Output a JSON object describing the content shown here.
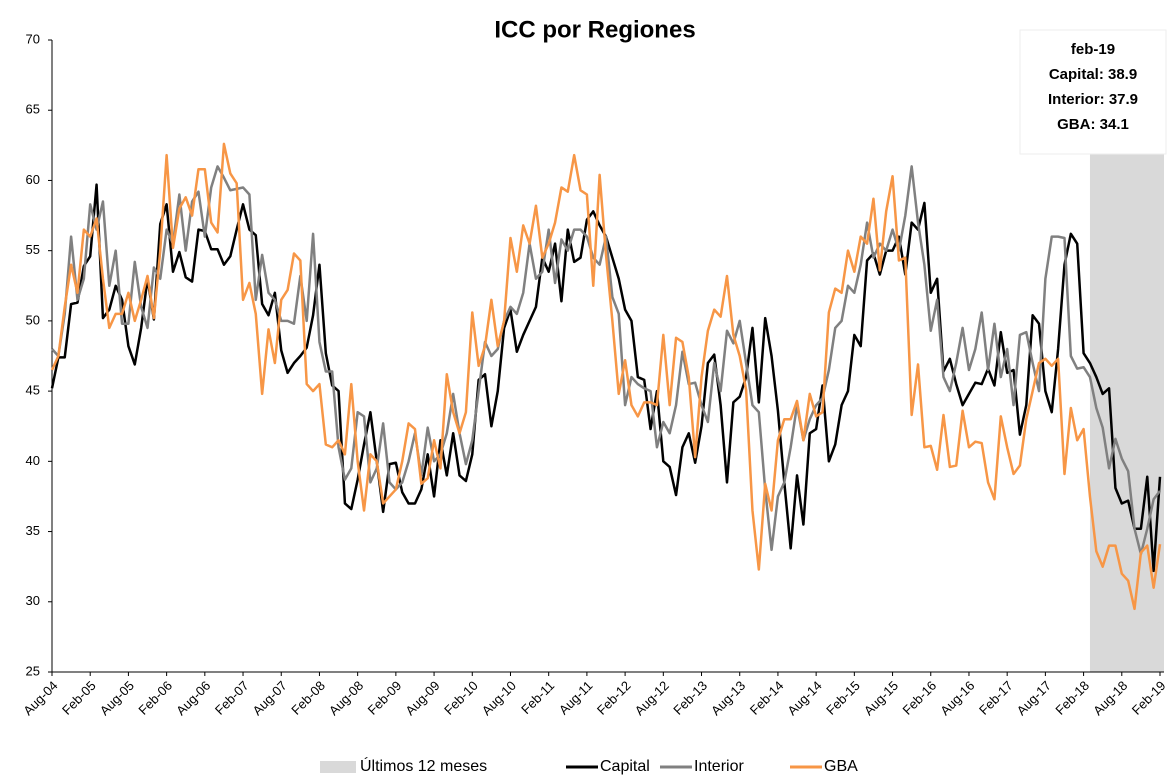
{
  "chart_data": {
    "type": "line",
    "title": "ICC por Regiones",
    "categories": [
      "Aug-04",
      null,
      null,
      null,
      null,
      null,
      "Feb-05",
      null,
      null,
      null,
      null,
      null,
      "Aug-05",
      null,
      null,
      null,
      null,
      null,
      "Feb-06",
      null,
      null,
      null,
      null,
      null,
      "Aug-06",
      null,
      null,
      null,
      null,
      null,
      "Feb-07",
      null,
      null,
      null,
      null,
      null,
      "Aug-07",
      null,
      null,
      null,
      null,
      null,
      "Feb-08",
      null,
      null,
      null,
      null,
      null,
      "Aug-08",
      null,
      null,
      null,
      null,
      null,
      "Feb-09",
      null,
      null,
      null,
      null,
      null,
      "Aug-09",
      null,
      null,
      null,
      null,
      null,
      "Feb-10",
      null,
      null,
      null,
      null,
      null,
      "Aug-10",
      null,
      null,
      null,
      null,
      null,
      "Feb-11",
      null,
      null,
      null,
      null,
      null,
      "Aug-11",
      null,
      null,
      null,
      null,
      null,
      "Feb-12",
      null,
      null,
      null,
      null,
      null,
      "Aug-12",
      null,
      null,
      null,
      null,
      null,
      "Feb-13",
      null,
      null,
      null,
      null,
      null,
      "Aug-13",
      null,
      null,
      null,
      null,
      null,
      "Feb-14",
      null,
      null,
      null,
      null,
      null,
      "Aug-14",
      null,
      null,
      null,
      null,
      null,
      "Feb-15",
      null,
      null,
      null,
      null,
      null,
      "Aug-15",
      null,
      null,
      null,
      null,
      null,
      "Feb-16",
      null,
      null,
      null,
      null,
      null,
      "Aug-16",
      null,
      null,
      null,
      null,
      null,
      "Feb-17",
      null,
      null,
      null,
      null,
      null,
      "Aug-17",
      null,
      null,
      null,
      null,
      null,
      "Feb-18",
      null,
      null,
      null,
      null,
      null,
      "Aug-18",
      null,
      null,
      null,
      null,
      null,
      "Feb-19"
    ],
    "series": [
      {
        "name": "Capital",
        "color": "#000000",
        "values": [
          45.2,
          47.4,
          47.4,
          51.2,
          51.3,
          53.9,
          54.6,
          59.7,
          50.2,
          50.8,
          52.5,
          51.5,
          48.2,
          46.9,
          49.5,
          53.0,
          50.1,
          56.9,
          58.3,
          53.5,
          54.9,
          53.1,
          52.8,
          56.5,
          56.4,
          55.1,
          55.1,
          54.0,
          54.6,
          56.5,
          58.3,
          56.5,
          56.1,
          51.2,
          50.4,
          52.0,
          47.9,
          46.3,
          47.0,
          47.5,
          48.1,
          50.4,
          54.0,
          47.7,
          45.4,
          45.0,
          37.0,
          36.6,
          38.7,
          41.2,
          43.5,
          40.0,
          36.4,
          39.8,
          39.9,
          37.8,
          37.0,
          37.0,
          38.0,
          40.5,
          37.5,
          41.5,
          39.0,
          42.0,
          39.0,
          38.6,
          40.5,
          45.8,
          46.2,
          42.5,
          45.0,
          49.5,
          50.8,
          47.8,
          49.0,
          50.0,
          51.0,
          54.5,
          53.5,
          55.5,
          51.4,
          56.5,
          54.2,
          54.5,
          57.2,
          57.8,
          56.8,
          56.0,
          54.5,
          53.0,
          50.8,
          50.0,
          46.0,
          45.8,
          42.3,
          45.0,
          40.0,
          39.6,
          37.6,
          41.0,
          42.0,
          39.9,
          42.5,
          47.0,
          47.6,
          44.0,
          38.5,
          44.2,
          44.6,
          46.0,
          49.5,
          44.2,
          50.2,
          47.5,
          43.6,
          38.5,
          33.8,
          39.0,
          35.5,
          42.0,
          42.3,
          45.4,
          40.0,
          41.2,
          44.0,
          45.0,
          49.0,
          48.2,
          54.3,
          54.8,
          53.3,
          55.0,
          55.0,
          56.0,
          53.3,
          57.0,
          56.5,
          58.4,
          52.0,
          53.0,
          46.4,
          47.3,
          45.5,
          44.0,
          44.8,
          45.6,
          45.5,
          46.6,
          45.4,
          49.2,
          46.3,
          46.5,
          41.9,
          44.0,
          50.4,
          49.8,
          45.0,
          43.5,
          48.0,
          54.0,
          56.2,
          55.5,
          47.7,
          47.0,
          46.0,
          44.8,
          45.2,
          38.1,
          37.0,
          37.2,
          35.2,
          35.2,
          38.9,
          32.2,
          38.9
        ]
      },
      {
        "name": "Interior",
        "color": "#808080",
        "values": [
          48.0,
          47.5,
          50.5,
          56.0,
          51.5,
          53.0,
          58.3,
          56.5,
          58.5,
          52.5,
          55.0,
          49.8,
          49.8,
          54.2,
          51.0,
          49.5,
          53.8,
          53.0,
          56.5,
          55.5,
          59.0,
          55.0,
          58.5,
          59.2,
          56.0,
          59.5,
          61.0,
          60.2,
          59.3,
          59.4,
          59.5,
          59.0,
          51.5,
          54.7,
          52.0,
          51.5,
          50.0,
          50.0,
          49.8,
          53.2,
          50.0,
          56.2,
          48.5,
          46.4,
          46.4,
          41.0,
          38.7,
          39.5,
          43.5,
          43.2,
          38.5,
          39.5,
          42.7,
          38.5,
          38.0,
          38.5,
          40.0,
          42.0,
          39.0,
          42.4,
          40.0,
          40.5,
          42.0,
          44.8,
          42.0,
          39.8,
          41.5,
          45.0,
          48.5,
          47.5,
          48.0,
          50.0,
          51.0,
          50.5,
          52.0,
          55.5,
          53.0,
          53.5,
          56.5,
          52.7,
          55.8,
          55.0,
          56.5,
          56.5,
          56.0,
          54.5,
          54.0,
          56.0,
          51.7,
          50.5,
          44.0,
          46.0,
          45.5,
          45.2,
          45.0,
          41.0,
          42.8,
          42.0,
          44.0,
          47.8,
          45.5,
          45.6,
          44.0,
          42.8,
          47.0,
          45.0,
          49.3,
          48.4,
          50.0,
          47.0,
          44.0,
          43.5,
          38.0,
          33.7,
          37.5,
          38.5,
          41.0,
          44.0,
          41.5,
          43.0,
          44.0,
          44.5,
          46.5,
          49.5,
          50.0,
          52.5,
          52.0,
          54.0,
          57.0,
          54.5,
          55.5,
          55.0,
          56.5,
          55.0,
          57.5,
          61.0,
          57.0,
          54.0,
          49.3,
          51.5,
          46.0,
          45.0,
          47.0,
          49.5,
          46.5,
          48.0,
          50.6,
          46.5,
          49.8,
          46.0,
          48.0,
          44.0,
          49.0,
          49.2,
          47.0,
          45.0,
          53.0,
          56.0,
          56.0,
          55.9,
          47.5,
          46.6,
          46.7,
          46.0,
          43.8,
          42.4,
          39.5,
          41.6,
          40.2,
          39.3,
          35.2,
          33.4,
          35.2,
          37.3,
          37.9
        ]
      },
      {
        "name": "GBA",
        "color": "#f79646",
        "values": [
          46.5,
          47.5,
          51.0,
          54.0,
          52.0,
          56.5,
          56.0,
          57.3,
          53.0,
          49.5,
          50.5,
          50.5,
          52.0,
          50.0,
          51.5,
          53.2,
          50.2,
          55.0,
          61.8,
          55.2,
          58.0,
          58.8,
          57.5,
          60.8,
          60.8,
          57.0,
          56.3,
          62.6,
          60.5,
          59.8,
          51.5,
          52.7,
          50.5,
          44.8,
          49.4,
          47.0,
          51.5,
          52.2,
          54.8,
          54.3,
          45.5,
          45.0,
          45.5,
          41.2,
          41.0,
          41.5,
          40.5,
          45.5,
          40.0,
          36.5,
          40.5,
          40.0,
          37.0,
          37.5,
          38.0,
          40.0,
          42.7,
          42.3,
          38.4,
          38.8,
          41.5,
          39.5,
          46.2,
          43.5,
          42.0,
          43.5,
          50.6,
          46.8,
          48.2,
          51.5,
          48.2,
          50.0,
          55.9,
          53.5,
          56.8,
          55.5,
          58.2,
          54.5,
          55.5,
          57.0,
          59.5,
          59.2,
          61.8,
          59.3,
          59.0,
          52.5,
          60.4,
          54.7,
          50.0,
          44.8,
          47.2,
          44.0,
          43.2,
          44.2,
          44.2,
          44.0,
          49.0,
          44.0,
          48.8,
          48.5,
          46.0,
          40.3,
          46.0,
          49.3,
          50.8,
          50.3,
          53.2,
          49.0,
          47.5,
          45.1,
          36.5,
          32.3,
          38.4,
          36.5,
          41.5,
          43.0,
          43.0,
          44.3,
          41.5,
          44.8,
          43.2,
          43.5,
          50.6,
          52.3,
          52.0,
          55.0,
          53.5,
          56.0,
          55.5,
          58.7,
          53.6,
          57.8,
          60.3,
          54.3,
          54.5,
          43.3,
          46.9,
          41.0,
          41.1,
          39.4,
          43.3,
          39.6,
          39.7,
          43.6,
          41.0,
          41.4,
          41.3,
          38.5,
          37.3,
          43.2,
          41.0,
          39.1,
          39.7,
          43.0,
          45.0,
          47.0,
          47.3,
          46.8,
          47.3,
          39.1,
          43.8,
          41.5,
          42.3,
          37.5,
          33.6,
          32.5,
          34.0,
          34.0,
          32.0,
          31.5,
          29.5,
          33.5,
          34.0,
          31.0,
          34.1
        ]
      }
    ],
    "highlight": {
      "name": "Últimos 12 meses",
      "color": "#d9d9d9",
      "months": 12
    },
    "annotation": [
      "feb-19",
      "Capital: 38.9",
      "Interior: 37.9",
      "GBA: 34.1"
    ],
    "ylim": [
      25,
      70
    ],
    "yticks": [
      25,
      30,
      35,
      40,
      45,
      50,
      55,
      60,
      65,
      70
    ],
    "grid": false
  }
}
